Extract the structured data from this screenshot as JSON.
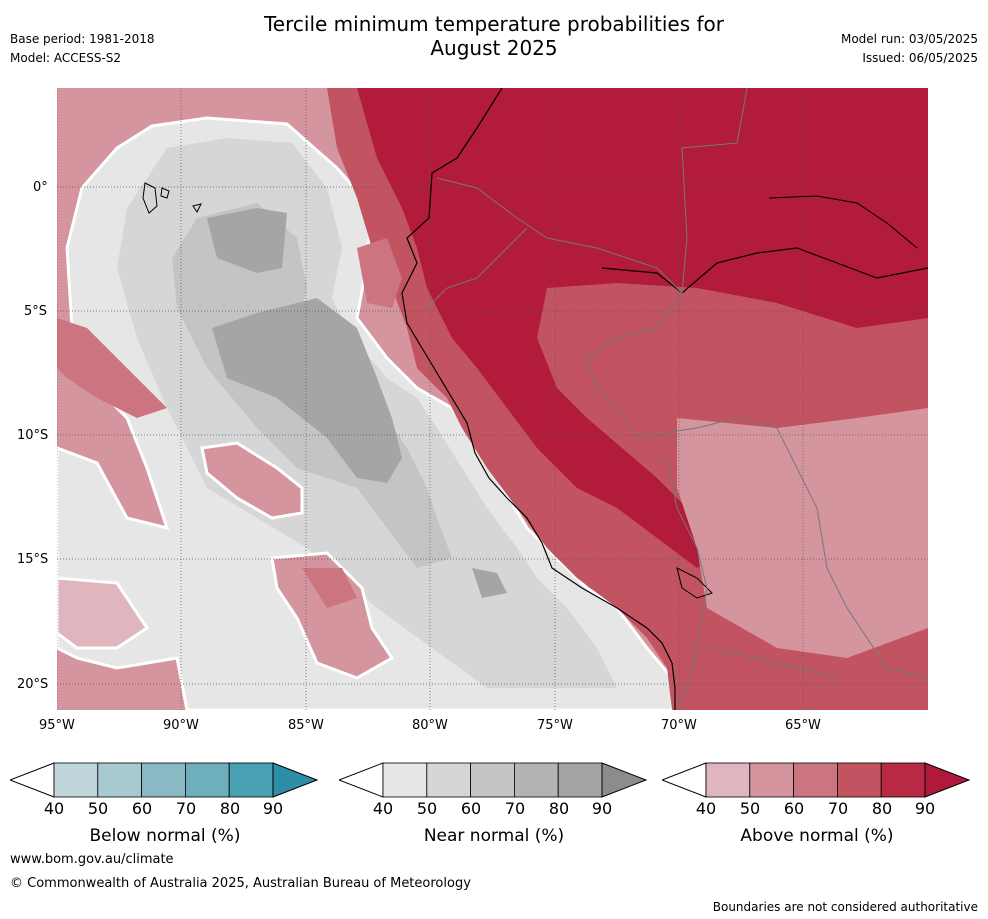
{
  "header": {
    "title_line1": "Tercile minimum temperature probabilities for",
    "title_line2": "August 2025",
    "base_period": "Base period: 1981-2018",
    "model": "Model: ACCESS-S2",
    "model_run": "Model run: 03/05/2025",
    "issued": "Issued: 06/05/2025"
  },
  "map": {
    "lat_labels": [
      "0°",
      "5°S",
      "10°S",
      "15°S",
      "20°S"
    ],
    "lon_labels": [
      "95°W",
      "90°W",
      "85°W",
      "80°W",
      "75°W",
      "70°W",
      "65°W"
    ],
    "colors": {
      "above": [
        "#dfb6bd",
        "#d4959e",
        "#cc7580",
        "#c25462",
        "#b31b3a"
      ],
      "near": [
        "#e6e6e6",
        "#d6d6d6",
        "#c4c4c4",
        "#b4b4b4",
        "#a5a5a5"
      ],
      "below": [
        "#bed5dc",
        "#a7c9d0",
        "#8ab9c4",
        "#6eafbb",
        "#48a0b2"
      ]
    }
  },
  "colorbars": [
    {
      "label": "Below normal (%)",
      "ticks": [
        "40",
        "50",
        "60",
        "70",
        "80",
        "90"
      ],
      "colors": [
        "#bed5dc",
        "#a7c9d0",
        "#8ab9c4",
        "#6eafbb",
        "#48a0b2"
      ],
      "arrow_color": "#2e8ea8"
    },
    {
      "label": "Near normal (%)",
      "ticks": [
        "40",
        "50",
        "60",
        "70",
        "80",
        "90"
      ],
      "colors": [
        "#e6e6e6",
        "#d6d6d6",
        "#c4c4c4",
        "#b4b4b4",
        "#a5a5a5"
      ],
      "arrow_color": "#8c8c8c"
    },
    {
      "label": "Above normal (%)",
      "ticks": [
        "40",
        "50",
        "60",
        "70",
        "80",
        "90"
      ],
      "colors": [
        "#dfb6bd",
        "#d4959e",
        "#cc7580",
        "#c25462",
        "#b82a44"
      ],
      "arrow_color": "#b01a3a"
    }
  ],
  "footer": {
    "url": "www.bom.gov.au/climate",
    "copyright": "© Commonwealth of Australia 2025, Australian Bureau of Meteorology",
    "disclaimer": "Boundaries are not considered authoritative"
  }
}
